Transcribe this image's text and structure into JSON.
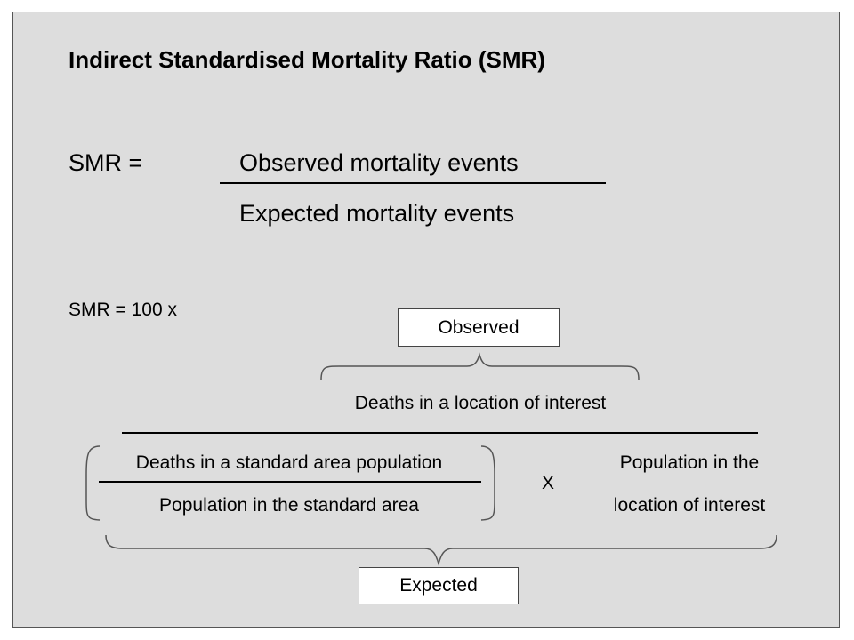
{
  "title": "Indirect Standardised Mortality Ratio (SMR)",
  "formula1": {
    "lhs": "SMR  =",
    "numerator": "Observed mortality events",
    "denominator": "Expected mortality events"
  },
  "formula2": {
    "lhs": "SMR =  100  x",
    "observed_label": "Observed",
    "numerator": "Deaths in a location of interest",
    "rate_numerator": "Deaths in a standard area population",
    "rate_denominator": "Population in the standard area",
    "times": "X",
    "population_line1": "Population in the",
    "population_line2": "location of interest",
    "expected_label": "Expected"
  }
}
